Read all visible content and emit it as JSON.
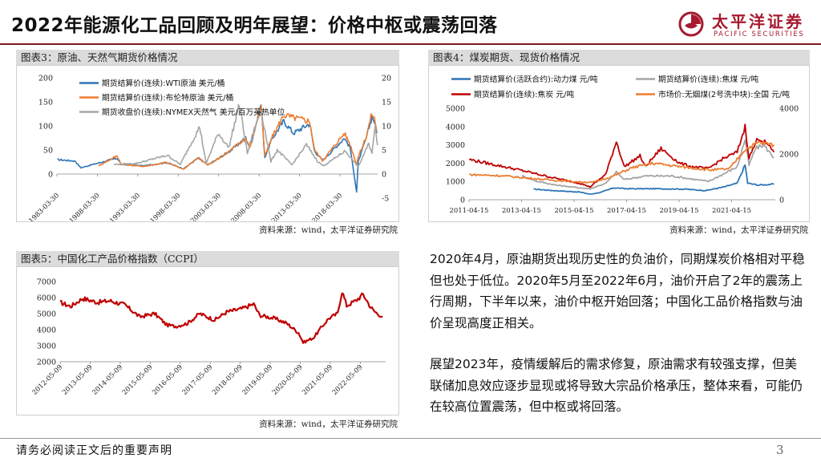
{
  "page": {
    "title": "2022年能源化工品回顾及明年展望：价格中枢或震荡回落",
    "logo_cn": "太平洋证券",
    "logo_en": "PACIFIC SECURITIES",
    "footer": "请务必阅读正文后的重要声明",
    "page_number": "3",
    "paragraphs": [
      "2020年4月，原油期货出现历史性的负油价，同期煤炭价格相对平稳但也处于低位。2020年5月至2022年6月，油价开启了2年的震荡上行周期，下半年以来，油价中枢开始回落；中国化工品价格指数与油价呈现高度正相关。",
      "展望2023年，疫情缓解后的需求修复，原油需求有较强支撑，但美联储加息效应逐步显现或将导致大宗品价格承压，整体来看，可能仍在较高位置震荡，但中枢或将回落。"
    ],
    "colors": {
      "brand": "#a6192e",
      "blue": "#2e75b6",
      "orange": "#ed7d31",
      "gray": "#a5a5a5",
      "red": "#c00000"
    }
  },
  "chart_data": [
    {
      "type": "line",
      "title": "图表3：原油、天然气期货价格情况",
      "source": "资料来源：wind，太平洋证券研究院",
      "x_ticks": [
        "1983-03-30",
        "1988-03-30",
        "1993-03-30",
        "1998-03-30",
        "2003-03-30",
        "2008-03-30",
        "2013-03-30",
        "2018-03-30"
      ],
      "x_range": [
        1983.25,
        2022.9
      ],
      "y_left_ticks": [
        200,
        150,
        100,
        50,
        0
      ],
      "y_right_ticks": [
        20,
        15,
        10,
        5,
        0,
        -5
      ],
      "ylim_left": [
        -50,
        200
      ],
      "ylim_right": [
        -5,
        20
      ],
      "series": [
        {
          "name": "期货结算价(连续):WTI原油 美元/桶",
          "axis": "left",
          "color": "#2e75b6",
          "points": [
            [
              1983.3,
              30
            ],
            [
              1985.5,
              27
            ],
            [
              1986.2,
              13
            ],
            [
              1987.5,
              19
            ],
            [
              1990.7,
              33
            ],
            [
              1991.2,
              20
            ],
            [
              1994,
              17
            ],
            [
              1996.8,
              24
            ],
            [
              1998.9,
              11
            ],
            [
              2000.7,
              33
            ],
            [
              2001.9,
              19
            ],
            [
              2003,
              30
            ],
            [
              2004.8,
              50
            ],
            [
              2006.6,
              75
            ],
            [
              2007.1,
              55
            ],
            [
              2008.5,
              145
            ],
            [
              2008.95,
              35
            ],
            [
              2009.9,
              75
            ],
            [
              2011.3,
              110
            ],
            [
              2012.5,
              85
            ],
            [
              2014.5,
              105
            ],
            [
              2015.1,
              48
            ],
            [
              2016.1,
              28
            ],
            [
              2018.8,
              75
            ],
            [
              2019.5,
              55
            ],
            [
              2020.3,
              -37
            ],
            [
              2020.5,
              25
            ],
            [
              2021.5,
              75
            ],
            [
              2022.2,
              120
            ],
            [
              2022.5,
              110
            ],
            [
              2022.8,
              85
            ]
          ]
        },
        {
          "name": "期货结算价(连续):布伦特原油 美元/桶",
          "axis": "left",
          "color": "#ed7d31",
          "points": [
            [
              1988.4,
              17
            ],
            [
              1990.7,
              38
            ],
            [
              1991.2,
              20
            ],
            [
              1994,
              16
            ],
            [
              1996.8,
              24
            ],
            [
              1998.9,
              10
            ],
            [
              2000.7,
              34
            ],
            [
              2001.9,
              19
            ],
            [
              2003,
              30
            ],
            [
              2004.8,
              50
            ],
            [
              2006.6,
              75
            ],
            [
              2007.1,
              55
            ],
            [
              2008.5,
              145
            ],
            [
              2008.95,
              37
            ],
            [
              2009.9,
              78
            ],
            [
              2011.3,
              123
            ],
            [
              2012.3,
              118
            ],
            [
              2014.5,
              110
            ],
            [
              2015.1,
              50
            ],
            [
              2016.1,
              28
            ],
            [
              2018.8,
              85
            ],
            [
              2019.5,
              62
            ],
            [
              2020.3,
              20
            ],
            [
              2020.5,
              35
            ],
            [
              2021.5,
              78
            ],
            [
              2022.2,
              127
            ],
            [
              2022.5,
              115
            ],
            [
              2022.8,
              90
            ]
          ]
        },
        {
          "name": "期货收盘价(连续):NYMEX天然气 美元/百万英热单位",
          "axis": "right",
          "color": "#a5a5a5",
          "points": [
            [
              1990.3,
              2.0
            ],
            [
              1993,
              2.2
            ],
            [
              1996.9,
              3.9
            ],
            [
              1998.5,
              2.0
            ],
            [
              2000.9,
              9.8
            ],
            [
              2001.7,
              2.2
            ],
            [
              2003.2,
              8.5
            ],
            [
              2004.5,
              5.5
            ],
            [
              2005.8,
              14.5
            ],
            [
              2006.8,
              4.3
            ],
            [
              2007.5,
              8.5
            ],
            [
              2008.5,
              13.2
            ],
            [
              2009.7,
              2.6
            ],
            [
              2010.5,
              5.0
            ],
            [
              2012.3,
              1.9
            ],
            [
              2014.1,
              6.1
            ],
            [
              2015.5,
              2.6
            ],
            [
              2016.2,
              1.7
            ],
            [
              2018.9,
              4.8
            ],
            [
              2020.5,
              1.5
            ],
            [
              2021.8,
              6.3
            ],
            [
              2022.2,
              4.5
            ],
            [
              2022.6,
              9.7
            ],
            [
              2022.9,
              6.0
            ]
          ]
        }
      ]
    },
    {
      "type": "line",
      "title": "图表4：煤炭期货、现货价格情况",
      "source": "资料来源：wind，太平洋证券研究院",
      "x_ticks": [
        "2011-04-15",
        "2013-04-15",
        "2015-04-15",
        "2017-04-15",
        "2019-04-15",
        "2021-04-15"
      ],
      "x_range": [
        2011.29,
        2022.95
      ],
      "y_left_ticks": [
        5000,
        4000,
        3000,
        2000,
        1000,
        0
      ],
      "y_right_ticks": [
        4000,
        2000,
        0
      ],
      "ylim_left": [
        0,
        5000
      ],
      "ylim_right": [
        0,
        4000
      ],
      "series": [
        {
          "name": "期货结算价(活跃合约):动力煤 元/吨",
          "axis": "left",
          "color": "#2e75b6",
          "points": [
            [
              2013.75,
              580
            ],
            [
              2014.5,
              500
            ],
            [
              2015.5,
              420
            ],
            [
              2015.9,
              300
            ],
            [
              2016.3,
              400
            ],
            [
              2016.8,
              650
            ],
            [
              2017.3,
              600
            ],
            [
              2018.5,
              600
            ],
            [
              2019.5,
              580
            ],
            [
              2020.3,
              500
            ],
            [
              2021,
              700
            ],
            [
              2021.5,
              900
            ],
            [
              2021.8,
              1900
            ],
            [
              2021.9,
              900
            ],
            [
              2022.3,
              800
            ],
            [
              2022.9,
              850
            ]
          ]
        },
        {
          "name": "期货结算价(连续):焦煤 元/吨",
          "axis": "left",
          "color": "#a5a5a5",
          "points": [
            [
              2013.3,
              1300
            ],
            [
              2013.9,
              1000
            ],
            [
              2014.6,
              800
            ],
            [
              2015.5,
              650
            ],
            [
              2015.9,
              600
            ],
            [
              2016.5,
              900
            ],
            [
              2016.9,
              1500
            ],
            [
              2017.2,
              1100
            ],
            [
              2018,
              1300
            ],
            [
              2019,
              1300
            ],
            [
              2020.4,
              1000
            ],
            [
              2020.9,
              1350
            ],
            [
              2021.5,
              1800
            ],
            [
              2021.8,
              3300
            ],
            [
              2021.95,
              1900
            ],
            [
              2022.2,
              2800
            ],
            [
              2022.5,
              3000
            ],
            [
              2022.9,
              2300
            ]
          ]
        },
        {
          "name": "期货结算价(连续):焦炭 元/吨",
          "axis": "left",
          "color": "#c00000",
          "points": [
            [
              2011.3,
              2200
            ],
            [
              2012.3,
              1900
            ],
            [
              2013.3,
              1600
            ],
            [
              2014.5,
              1200
            ],
            [
              2015.5,
              900
            ],
            [
              2015.9,
              700
            ],
            [
              2016.5,
              1400
            ],
            [
              2016.9,
              3200
            ],
            [
              2017.2,
              1800
            ],
            [
              2017.8,
              2400
            ],
            [
              2018,
              1800
            ],
            [
              2018.6,
              2800
            ],
            [
              2019.3,
              2000
            ],
            [
              2019.8,
              1800
            ],
            [
              2020.4,
              1700
            ],
            [
              2020.9,
              2200
            ],
            [
              2021.5,
              2600
            ],
            [
              2021.8,
              4000
            ],
            [
              2021.95,
              2300
            ],
            [
              2022.3,
              3400
            ],
            [
              2022.6,
              3100
            ],
            [
              2022.9,
              2600
            ]
          ]
        },
        {
          "name": "市场价:无烟煤(2号洗中块):全国 元/吨",
          "axis": "right",
          "color": "#ed7d31",
          "points": [
            [
              2011.3,
              1100
            ],
            [
              2012.5,
              1050
            ],
            [
              2013.5,
              950
            ],
            [
              2014.5,
              850
            ],
            [
              2015.5,
              780
            ],
            [
              2016,
              760
            ],
            [
              2016.7,
              1000
            ],
            [
              2017.5,
              1400
            ],
            [
              2018.3,
              1600
            ],
            [
              2019.3,
              1450
            ],
            [
              2020.5,
              1300
            ],
            [
              2021.2,
              1350
            ],
            [
              2021.8,
              2200
            ],
            [
              2022.3,
              2500
            ],
            [
              2022.6,
              2450
            ],
            [
              2022.9,
              2400
            ]
          ]
        }
      ]
    },
    {
      "type": "line",
      "title": "图表5：中国化工产品价格指数（CCPI）",
      "source": "资料来源：wind，太平洋证券研究院",
      "x_ticks": [
        "2012-05-09",
        "2013-05-09",
        "2014-05-09",
        "2015-05-09",
        "2016-05-09",
        "2017-05-09",
        "2018-05-09",
        "2019-05-09",
        "2020-05-09",
        "2021-05-09",
        "2022-05-09"
      ],
      "x_range": [
        2012.35,
        2023.2
      ],
      "y_left_ticks": [
        7000,
        6000,
        5000,
        4000,
        3000,
        2000
      ],
      "ylim_left": [
        2000,
        7000
      ],
      "series": [
        {
          "name": "中国化工产品价格指数",
          "axis": "left",
          "color": "#c00000",
          "points": [
            [
              2012.35,
              5700
            ],
            [
              2012.7,
              5450
            ],
            [
              2013.1,
              5950
            ],
            [
              2013.6,
              5700
            ],
            [
              2014,
              5800
            ],
            [
              2014.5,
              5550
            ],
            [
              2015,
              4800
            ],
            [
              2015.5,
              5000
            ],
            [
              2015.9,
              4300
            ],
            [
              2016.2,
              4200
            ],
            [
              2016.6,
              4400
            ],
            [
              2017,
              5000
            ],
            [
              2017.5,
              4600
            ],
            [
              2017.9,
              5100
            ],
            [
              2018.4,
              5300
            ],
            [
              2018.8,
              5600
            ],
            [
              2019,
              4900
            ],
            [
              2019.5,
              4700
            ],
            [
              2019.9,
              4400
            ],
            [
              2020.3,
              3800
            ],
            [
              2020.45,
              3200
            ],
            [
              2020.8,
              3500
            ],
            [
              2021,
              4000
            ],
            [
              2021.3,
              4700
            ],
            [
              2021.6,
              5000
            ],
            [
              2021.75,
              6400
            ],
            [
              2021.9,
              5500
            ],
            [
              2022.2,
              5800
            ],
            [
              2022.45,
              6200
            ],
            [
              2022.7,
              5400
            ],
            [
              2022.85,
              5100
            ],
            [
              2023.1,
              4800
            ]
          ]
        }
      ]
    }
  ]
}
